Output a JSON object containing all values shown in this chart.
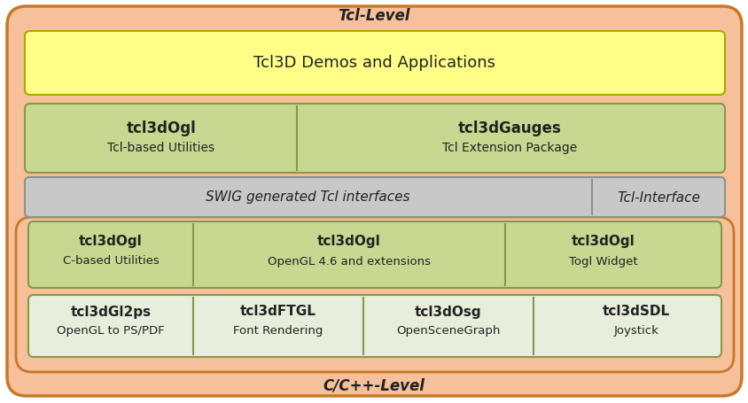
{
  "bg_color": "#ffffff",
  "outer_color": "#f5c09a",
  "outer_edge": "#c87828",
  "yellow_color": "#ffff88",
  "yellow_edge": "#aaaa00",
  "green_color": "#c8d890",
  "green_edge": "#889848",
  "gray_color": "#c8c8c8",
  "gray_edge": "#909090",
  "light_color": "#e8eedc",
  "light_edge": "#889848",
  "text_color": "#222222",
  "tcl_level_label": "Tcl-Level",
  "cpp_level_label": "C/C++-Level",
  "demos_label": "Tcl3D Demos and Applications",
  "tcl3dogl_tcl_label": "tcl3dOgl",
  "tcl3dogl_tcl_sub": "Tcl-based Utilities",
  "tcl3dgauges_label": "tcl3dGauges",
  "tcl3dgauges_sub": "Tcl Extension Package",
  "swig_label": "SWIG generated Tcl interfaces",
  "tcl_interface_label": "Tcl-Interface",
  "tcl3dogl_c_label": "tcl3dOgl",
  "tcl3dogl_c_sub": "C-based Utilities",
  "tcl3dogl_ogl_label": "tcl3dOgl",
  "tcl3dogl_ogl_sub": "OpenGL 4.6 and extensions",
  "tcl3dogl_togl_label": "tcl3dOgl",
  "tcl3dogl_togl_sub": "Togl Widget",
  "tcl3dgl2ps_label": "tcl3dGl2ps",
  "tcl3dgl2ps_sub": "OpenGL to PS/PDF",
  "tcl3dftgl_label": "tcl3dFTGL",
  "tcl3dftgl_sub": "Font Rendering",
  "tcl3dosg_label": "tcl3dOsg",
  "tcl3dosg_sub": "OpenSceneGraph",
  "tcl3dsdl_label": "tcl3dSDL",
  "tcl3dsdl_sub": "Joystick"
}
